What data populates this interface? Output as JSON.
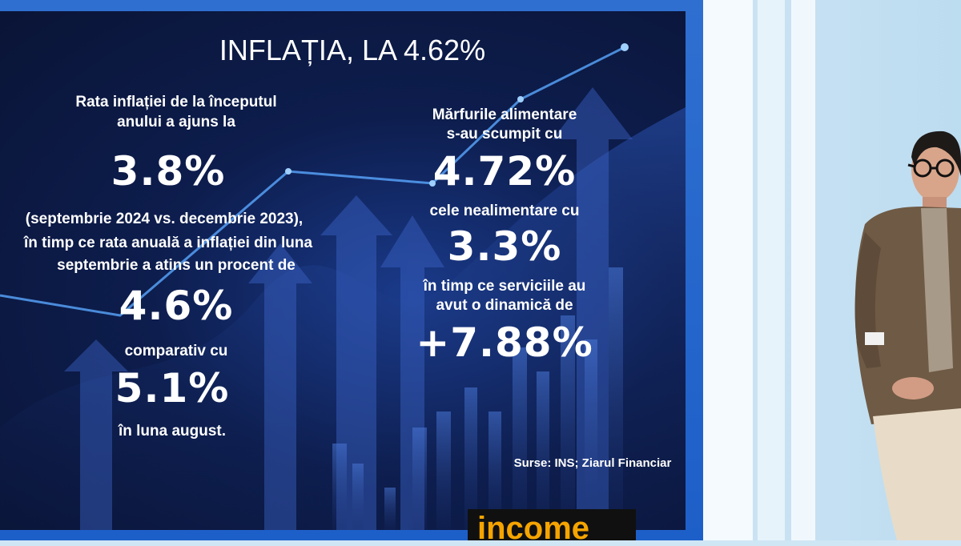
{
  "slide": {
    "title": "INFLAȚIA, LA 4.62%",
    "left_text_1": "Rata inflației de la începutul",
    "left_text_2": "anului a ajuns la",
    "left_value_1": "3.8%",
    "left_text_3": "(septembrie 2024 vs. decembrie 2023),",
    "left_text_4": "în timp ce rata anuală a inflației din luna",
    "left_text_5": "septembrie a atins un procent de",
    "left_value_2": "4.6%",
    "left_text_6": "comparativ cu",
    "left_value_3": "5.1%",
    "left_text_7": "în luna august.",
    "right_text_1": "Mărfurile alimentare",
    "right_text_2": "s-au scumpit cu",
    "right_value_1": "4.72%",
    "right_text_3": "cele nealimentare cu",
    "right_value_2": "3.3%",
    "right_text_4": "în timp ce serviciile au",
    "right_text_5": "avut o dinamică de",
    "right_value_3": "+7.88%",
    "source": "Surse: INS; Ziarul Financiar"
  },
  "logo": {
    "text": "income",
    "color": "#f5a400"
  },
  "colors": {
    "slide_bg": "#0d1d4d",
    "frame": "#1d5fc8",
    "accent_line": "#5aa8ff"
  }
}
